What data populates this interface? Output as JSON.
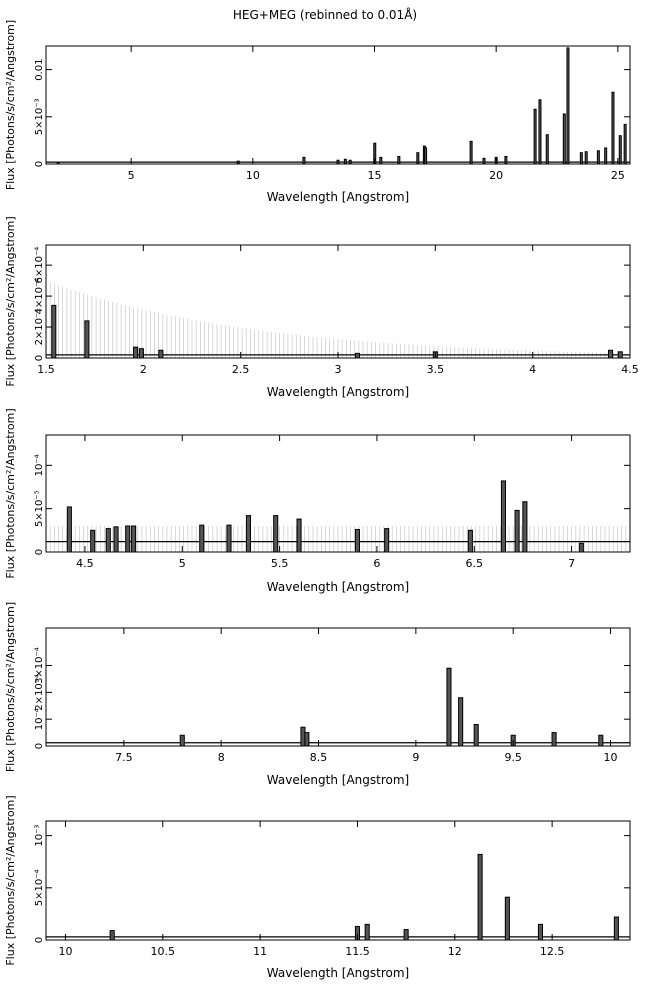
{
  "title": "HEG+MEG (rebinned to 0.01Å)",
  "chart_data": [
    {
      "type": "line",
      "title": "HEG+MEG (rebinned to 0.01Å)",
      "xlabel": "Wavelength [Angstrom]",
      "ylabel": "Flux [Photons/s/cm²/Angstrom]",
      "xlim": [
        1.5,
        25.5
      ],
      "ylim": [
        0,
        0.0125
      ],
      "x_ticks": [
        5,
        10,
        15,
        20,
        25
      ],
      "y_ticks": [
        {
          "v": 0,
          "label": "0"
        },
        {
          "v": 0.005,
          "label": "5×10⁻³"
        },
        {
          "v": 0.01,
          "label": "0.01"
        }
      ],
      "series": [
        {
          "lines": [
            [
              2.0,
              0.0002
            ],
            [
              9.4,
              0.0003
            ],
            [
              12.1,
              0.0007
            ],
            [
              13.5,
              0.0004
            ],
            [
              13.8,
              0.0005
            ],
            [
              14.0,
              0.0004
            ],
            [
              15.01,
              0.0022
            ],
            [
              15.26,
              0.0007
            ],
            [
              16.0,
              0.0008
            ],
            [
              16.78,
              0.0012
            ],
            [
              17.05,
              0.0019
            ],
            [
              17.1,
              0.0017
            ],
            [
              18.97,
              0.0024
            ],
            [
              19.5,
              0.0006
            ],
            [
              20.0,
              0.0007
            ],
            [
              20.4,
              0.0008
            ],
            [
              21.6,
              0.0058
            ],
            [
              21.8,
              0.0068
            ],
            [
              22.1,
              0.0031
            ],
            [
              22.8,
              0.0053
            ],
            [
              22.95,
              0.0123
            ],
            [
              23.5,
              0.0012
            ],
            [
              23.7,
              0.0013
            ],
            [
              24.2,
              0.0014
            ],
            [
              24.5,
              0.0017
            ],
            [
              24.8,
              0.0076
            ],
            [
              25.1,
              0.003
            ],
            [
              25.3,
              0.0042
            ]
          ],
          "baseline": 0.0002
        }
      ]
    },
    {
      "type": "line",
      "xlabel": "Wavelength [Angstrom]",
      "ylabel": "Flux [Photons/s/cm²/Angstrom]",
      "xlim": [
        1.5,
        4.5
      ],
      "ylim": [
        0,
        0.00073
      ],
      "x_ticks": [
        1.5,
        2,
        2.5,
        3,
        3.5,
        4,
        4.5
      ],
      "y_ticks": [
        {
          "v": 0,
          "label": "0"
        },
        {
          "v": 0.0002,
          "label": "2×10⁻⁴"
        },
        {
          "v": 0.0004,
          "label": "4×10⁻⁴"
        },
        {
          "v": 0.0006,
          "label": "6×10⁻⁴"
        }
      ],
      "series": [
        {
          "lines": [
            [
              1.54,
              0.00034
            ],
            [
              1.71,
              0.00024
            ],
            [
              1.96,
              7e-05
            ],
            [
              1.99,
              6e-05
            ],
            [
              2.09,
              5e-05
            ],
            [
              3.1,
              3e-05
            ],
            [
              3.5,
              4e-05
            ],
            [
              4.4,
              5e-05
            ],
            [
              4.45,
              4e-05
            ]
          ],
          "baseline": 2e-05,
          "err_start": 0.0005,
          "err_end": 3e-05
        }
      ]
    },
    {
      "type": "line",
      "xlabel": "Wavelength [Angstrom]",
      "ylabel": "Flux [Photons/s/cm²/Angstrom]",
      "xlim": [
        4.3,
        7.3
      ],
      "ylim": [
        0,
        0.000135
      ],
      "x_ticks": [
        4.5,
        5,
        5.5,
        6,
        6.5,
        7
      ],
      "y_ticks": [
        {
          "v": 0,
          "label": "0"
        },
        {
          "v": 5e-05,
          "label": "5×10⁻⁵"
        },
        {
          "v": 0.0001,
          "label": "10⁻⁴"
        }
      ],
      "series": [
        {
          "lines": [
            [
              4.42,
              5.2e-05
            ],
            [
              4.54,
              2.5e-05
            ],
            [
              4.62,
              2.7e-05
            ],
            [
              4.66,
              2.9e-05
            ],
            [
              4.72,
              3e-05
            ],
            [
              4.75,
              3e-05
            ],
            [
              5.1,
              3.1e-05
            ],
            [
              5.24,
              3.1e-05
            ],
            [
              5.34,
              4.2e-05
            ],
            [
              5.48,
              4.2e-05
            ],
            [
              5.6,
              3.8e-05
            ],
            [
              5.9,
              2.6e-05
            ],
            [
              6.05,
              2.7e-05
            ],
            [
              6.48,
              2.5e-05
            ],
            [
              6.65,
              8.2e-05
            ],
            [
              6.72,
              4.8e-05
            ],
            [
              6.76,
              5.8e-05
            ],
            [
              7.05,
              1e-05
            ]
          ],
          "baseline": 1.2e-05,
          "err_start": 3e-05,
          "err_end": 3e-05
        }
      ]
    },
    {
      "type": "line",
      "xlabel": "Wavelength [Angstrom]",
      "ylabel": "Flux [Photons/s/cm²/Angstrom]",
      "xlim": [
        7.1,
        10.1
      ],
      "ylim": [
        0,
        0.00044
      ],
      "x_ticks": [
        7.5,
        8,
        8.5,
        9,
        9.5,
        10
      ],
      "y_ticks": [
        {
          "v": 0,
          "label": "0"
        },
        {
          "v": 0.0001,
          "label": "10⁻⁴"
        },
        {
          "v": 0.0002,
          "label": "2×10⁻⁴"
        },
        {
          "v": 0.0003,
          "label": "3×10⁻⁴"
        }
      ],
      "series": [
        {
          "lines": [
            [
              7.8,
              4e-05
            ],
            [
              8.42,
              7e-05
            ],
            [
              8.44,
              5e-05
            ],
            [
              9.17,
              0.00029
            ],
            [
              9.23,
              0.00018
            ],
            [
              9.31,
              8e-05
            ],
            [
              9.5,
              4e-05
            ],
            [
              9.71,
              5e-05
            ],
            [
              9.95,
              4e-05
            ]
          ],
          "baseline": 1.2e-05
        }
      ]
    },
    {
      "type": "line",
      "xlabel": "Wavelength [Angstrom]",
      "ylabel": "Flux [Photons/s/cm²/Angstrom]",
      "xlim": [
        9.9,
        12.9
      ],
      "ylim": [
        0,
        0.00114
      ],
      "x_ticks": [
        10,
        10.5,
        11,
        11.5,
        12,
        12.5
      ],
      "y_ticks": [
        {
          "v": 0,
          "label": "0"
        },
        {
          "v": 0.0005,
          "label": "5×10⁻⁴"
        },
        {
          "v": 0.001,
          "label": "10⁻³"
        }
      ],
      "series": [
        {
          "lines": [
            [
              10.24,
              9e-05
            ],
            [
              11.5,
              0.00013
            ],
            [
              11.55,
              0.00015
            ],
            [
              11.75,
              0.0001
            ],
            [
              12.13,
              0.00082
            ],
            [
              12.27,
              0.00041
            ],
            [
              12.44,
              0.00015
            ],
            [
              12.83,
              0.00022
            ]
          ],
          "baseline": 3e-05
        }
      ]
    }
  ]
}
